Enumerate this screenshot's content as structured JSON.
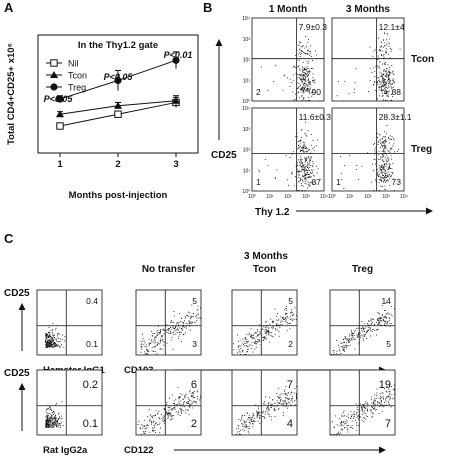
{
  "panel_labels": [
    "A",
    "B",
    "C"
  ],
  "chart_data": [
    {
      "type": "line",
      "panel": "A",
      "title": "In the Thy1.2 gate",
      "xlabel": "Months post-injection",
      "ylabel": "Total CD4+CD25+ x10⁶",
      "x": [
        1,
        2,
        3
      ],
      "x_ticks": [
        "1",
        "2",
        "3"
      ],
      "ylim": [
        0,
        7
      ],
      "legend_position": "top-left",
      "series": [
        {
          "name": "Nil",
          "marker": "open-square",
          "values": [
            1.6,
            2.3,
            3.0
          ],
          "errors": [
            0.1,
            0.15,
            0.3
          ]
        },
        {
          "name": "Tcon",
          "marker": "triangle",
          "values": [
            2.3,
            2.8,
            3.1
          ],
          "errors": [
            0.15,
            0.2,
            0.3
          ]
        },
        {
          "name": "Treg",
          "marker": "circle",
          "values": [
            3.2,
            4.3,
            5.5
          ],
          "errors": [
            0.2,
            0.6,
            0.5
          ]
        }
      ],
      "annotations": [
        {
          "text": "P<0.05",
          "x": 1
        },
        {
          "text": "P<0.05",
          "x": 2
        },
        {
          "text": "P<0.01",
          "x": 3
        }
      ]
    },
    {
      "type": "scatter",
      "panel": "B",
      "xlabel": "Thy 1.2",
      "ylabel": "CD25",
      "x_ticks": [
        "10⁰",
        "10¹",
        "10²",
        "10³",
        "10⁴"
      ],
      "y_ticks": [
        "10⁰",
        "10¹",
        "10²",
        "10³",
        "10⁴"
      ],
      "column_labels": [
        "1 Month",
        "3 Months"
      ],
      "row_labels": [
        "Tcon",
        "Treg"
      ],
      "plots": [
        {
          "row": "Tcon",
          "col": "1 Month",
          "top_right": "7.9±0.3",
          "bottom_left": "2",
          "bottom_right": "90"
        },
        {
          "row": "Tcon",
          "col": "3 Months",
          "top_right": "12.1±4",
          "bottom_left": "",
          "bottom_right": "88"
        },
        {
          "row": "Treg",
          "col": "1 Month",
          "top_right": "11.6±0.3",
          "bottom_left": "1",
          "bottom_right": "87"
        },
        {
          "row": "Treg",
          "col": "3 Months",
          "top_right": "28.3±1.1",
          "bottom_left": "1",
          "bottom_right": "73"
        }
      ]
    },
    {
      "type": "scatter",
      "panel": "C",
      "header": "3 Months",
      "column_labels": [
        "No transfer",
        "Tcon",
        "Treg"
      ],
      "ylabel": "CD25",
      "rows": [
        {
          "isotype_label": "Hamster IgG1",
          "marker_label": "CD103",
          "plots": [
            {
              "col": "isotype",
              "top_right": "0.4",
              "bottom_right": "0.1"
            },
            {
              "col": "No transfer",
              "top_right": "5",
              "bottom_right": "3"
            },
            {
              "col": "Tcon",
              "top_right": "5",
              "bottom_right": "2"
            },
            {
              "col": "Treg",
              "top_right": "14",
              "bottom_right": "5"
            }
          ]
        },
        {
          "isotype_label": "Rat IgG2a",
          "marker_label": "CD122",
          "plots": [
            {
              "col": "isotype",
              "top_right": "0.2",
              "bottom_right": "0.1"
            },
            {
              "col": "No transfer",
              "top_right": "6",
              "bottom_right": "2"
            },
            {
              "col": "Tcon",
              "top_right": "7",
              "bottom_right": "4"
            },
            {
              "col": "Treg",
              "top_right": "19",
              "bottom_right": "7"
            }
          ]
        }
      ]
    }
  ]
}
